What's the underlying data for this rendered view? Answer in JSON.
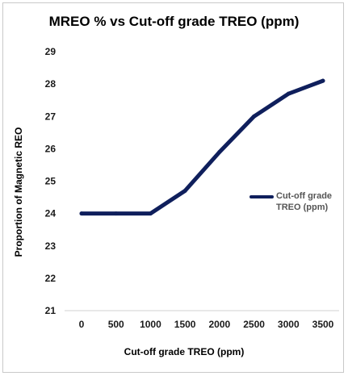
{
  "chart_data": {
    "type": "line",
    "title": "MREO % vs Cut-off grade TREO (ppm)",
    "xlabel": "Cut-off grade TREO (ppm)",
    "ylabel": "Proportion of Magnetic REO",
    "x": [
      0,
      500,
      1000,
      1500,
      2000,
      2500,
      3000,
      3500
    ],
    "series": [
      {
        "name": "Cut-off grade TREO (ppm)",
        "values": [
          24,
          24,
          24,
          24.7,
          25.9,
          27.0,
          27.7,
          28.1
        ]
      }
    ],
    "xticks": [
      "0",
      "500",
      "1000",
      "1500",
      "2000",
      "2500",
      "3000",
      "3500"
    ],
    "yticks": [
      "21",
      "22",
      "23",
      "24",
      "25",
      "26",
      "27",
      "28",
      "29"
    ],
    "ylim": [
      21,
      29
    ],
    "grid": false,
    "legend_position": "right",
    "line_color": "#0f1f5c"
  }
}
